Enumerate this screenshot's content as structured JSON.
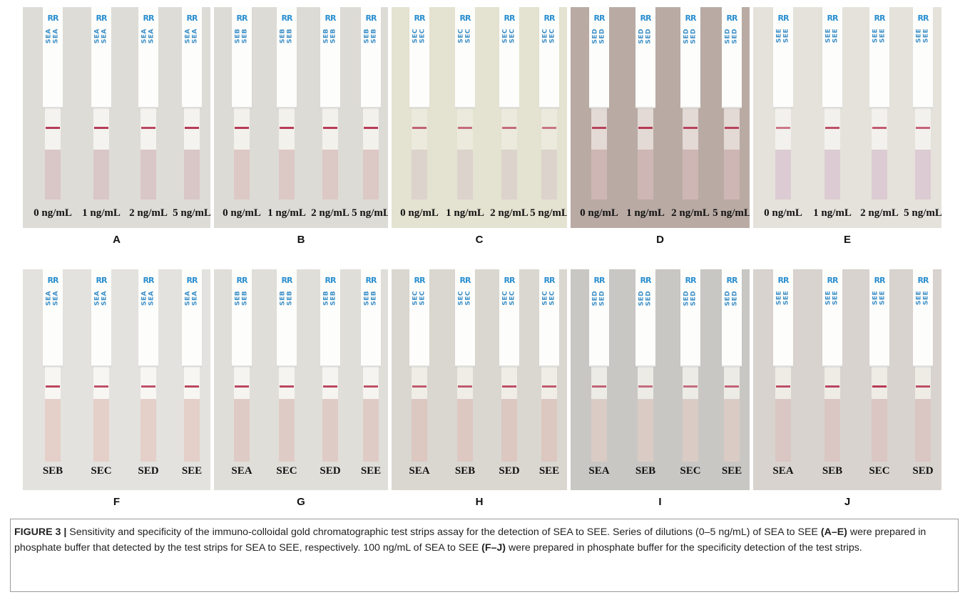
{
  "figure": {
    "rows": [
      {
        "panels": [
          {
            "letter": "A",
            "bg": "#dedcd7",
            "strip": "#f4f3ef",
            "pad": "#d9c6c6",
            "brand": [
              "SEA",
              "SEA"
            ],
            "logo": "RR",
            "strips": [
              {
                "label": "0 ng/mL",
                "lines": [
                  0.9
                ]
              },
              {
                "label": "1 ng/mL",
                "lines": [
                  0.9
                ]
              },
              {
                "label": "2 ng/mL",
                "lines": [
                  0.85,
                  0.15
                ]
              },
              {
                "label": "5 ng/mL",
                "lines": [
                  0.9,
                  0.4
                ]
              }
            ]
          },
          {
            "letter": "B",
            "bg": "#dddbd6",
            "strip": "#f3f1ec",
            "pad": "#dcc8c5",
            "brand": [
              "SEB",
              "SEB"
            ],
            "logo": "RR",
            "strips": [
              {
                "label": "0 ng/mL",
                "lines": [
                  0.9
                ]
              },
              {
                "label": "1 ng/mL",
                "lines": [
                  0.9,
                  0.1
                ]
              },
              {
                "label": "2 ng/mL",
                "lines": [
                  0.9,
                  0.25
                ]
              },
              {
                "label": "5 ng/mL",
                "lines": [
                  0.9,
                  0.45
                ]
              }
            ]
          },
          {
            "letter": "C",
            "bg": "#e4e2d0",
            "strip": "#ebeadc",
            "pad": "#dcd3cc",
            "brand": [
              "SEC",
              "SEC"
            ],
            "logo": "RR",
            "strips": [
              {
                "label": "0 ng/mL",
                "lines": [
                  0.7
                ]
              },
              {
                "label": "1 ng/mL",
                "lines": [
                  0.65
                ]
              },
              {
                "label": "2 ng/mL",
                "lines": [
                  0.65,
                  0.1
                ]
              },
              {
                "label": "5 ng/mL",
                "lines": [
                  0.6,
                  0.25
                ]
              }
            ]
          },
          {
            "letter": "D",
            "bg": "#b9aba4",
            "strip": "#e3d9d5",
            "pad": "#cdb6b3",
            "brand": [
              "SED",
              "SED"
            ],
            "logo": "RR",
            "strips": [
              {
                "label": "0 ng/mL",
                "lines": [
                  0.85
                ]
              },
              {
                "label": "1 ng/mL",
                "lines": [
                  0.9
                ]
              },
              {
                "label": "2 ng/mL",
                "lines": [
                  0.85,
                  0.35
                ]
              },
              {
                "label": "5 ng/mL",
                "lines": [
                  0.85,
                  0.5
                ]
              }
            ]
          },
          {
            "letter": "E",
            "bg": "#e5e2dc",
            "strip": "#f3f1ed",
            "pad": "#dccbd2",
            "brand": [
              "SEE",
              "SEE"
            ],
            "logo": "RR",
            "strips": [
              {
                "label": "0 ng/mL",
                "lines": [
                  0.6
                ]
              },
              {
                "label": "1 ng/mL",
                "lines": [
                  0.8
                ]
              },
              {
                "label": "2 ng/mL",
                "lines": [
                  0.75,
                  0.1
                ]
              },
              {
                "label": "5 ng/mL",
                "lines": [
                  0.7,
                  0.35
                ]
              }
            ]
          }
        ]
      },
      {
        "panels": [
          {
            "letter": "F",
            "bg": "#e4e2de",
            "strip": "#f7f6f2",
            "pad": "#e4cfc9",
            "brand": [
              "SEA",
              "SEA"
            ],
            "logo": "RR",
            "strips": [
              {
                "label": "SEB",
                "lines": [
                  0.85
                ]
              },
              {
                "label": "SEC",
                "lines": [
                  0.8
                ]
              },
              {
                "label": "SED",
                "lines": [
                  0.8
                ]
              },
              {
                "label": "SEE",
                "lines": [
                  0.85
                ]
              }
            ]
          },
          {
            "letter": "G",
            "bg": "#e0ded9",
            "strip": "#f5f4f0",
            "pad": "#dfcbc6",
            "brand": [
              "SEB",
              "SEB"
            ],
            "logo": "RR",
            "strips": [
              {
                "label": "SEA",
                "lines": [
                  0.85
                ]
              },
              {
                "label": "SEC",
                "lines": [
                  0.85
                ]
              },
              {
                "label": "SED",
                "lines": [
                  0.85
                ]
              },
              {
                "label": "SEE",
                "lines": [
                  0.8
                ]
              }
            ]
          },
          {
            "letter": "H",
            "bg": "#dad7d1",
            "strip": "#efede6",
            "pad": "#dcc7c1",
            "brand": [
              "SEC",
              "SEC"
            ],
            "logo": "RR",
            "strips": [
              {
                "label": "SEA",
                "lines": [
                  0.75
                ]
              },
              {
                "label": "SEB",
                "lines": [
                  0.75
                ]
              },
              {
                "label": "SED",
                "lines": [
                  0.8
                ]
              },
              {
                "label": "SEE",
                "lines": [
                  0.75
                ]
              }
            ]
          },
          {
            "letter": "I",
            "bg": "#c9c7c4",
            "strip": "#ecebe5",
            "pad": "#dacbc5",
            "brand": [
              "SED",
              "SED"
            ],
            "logo": "RR",
            "strips": [
              {
                "label": "SEA",
                "lines": [
                  0.7
                ]
              },
              {
                "label": "SEB",
                "lines": [
                  0.65
                ]
              },
              {
                "label": "SEC",
                "lines": [
                  0.65
                ]
              },
              {
                "label": "SEE",
                "lines": [
                  0.7
                ]
              }
            ]
          },
          {
            "letter": "J",
            "bg": "#d8d3ce",
            "strip": "#efece6",
            "pad": "#dac6c3",
            "brand": [
              "SEE",
              "SEE"
            ],
            "logo": "RR",
            "strips": [
              {
                "label": "SEA",
                "lines": [
                  0.8
                ]
              },
              {
                "label": "SEB",
                "lines": [
                  0.85
                ]
              },
              {
                "label": "SEC",
                "lines": [
                  0.9
                ]
              },
              {
                "label": "SED",
                "lines": [
                  0.8
                ]
              }
            ]
          }
        ]
      }
    ]
  },
  "caption": {
    "figure_label": "FIGURE 3 |",
    "text_1": " Sensitivity and specificity of the immuno-colloidal gold chromatographic test strips assay for the detection of SEA to SEE. Series of dilutions (0–5 ng/mL) of SEA to SEE ",
    "ref_1": "(A–E)",
    "text_2": " were prepared in phosphate buffer that detected by the test strips for SEA to SEE, respectively. 100 ng/mL of SEA to SEE ",
    "ref_2": "(F–J)",
    "text_3": " were prepared in phosphate buffer for the specificity detection of the test strips."
  }
}
